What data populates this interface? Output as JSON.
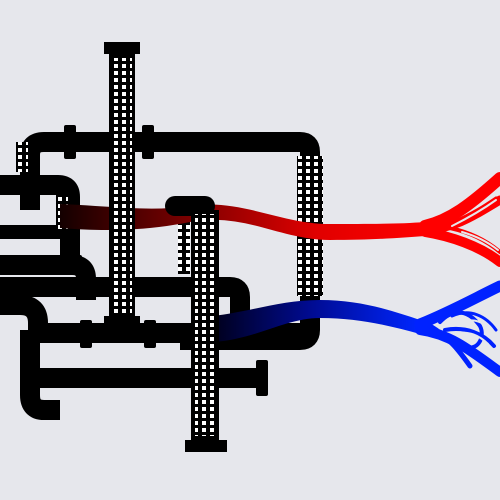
{
  "scene": {
    "subject": "pipe-network-with-vein-outflows",
    "colors": {
      "background": "#e6e7ec",
      "pipe": "#000000",
      "grille": "#ffffff",
      "hot_flow": "#ff0000",
      "cold_flow": "#0022ff",
      "hot_flow_dark": "#1a0000",
      "cold_flow_dark": "#000018"
    },
    "icons": {
      "pipe_structure": "pipe-network-icon",
      "hot_outflow": "red-vein-branches",
      "cold_outflow": "blue-vein-branches"
    }
  }
}
